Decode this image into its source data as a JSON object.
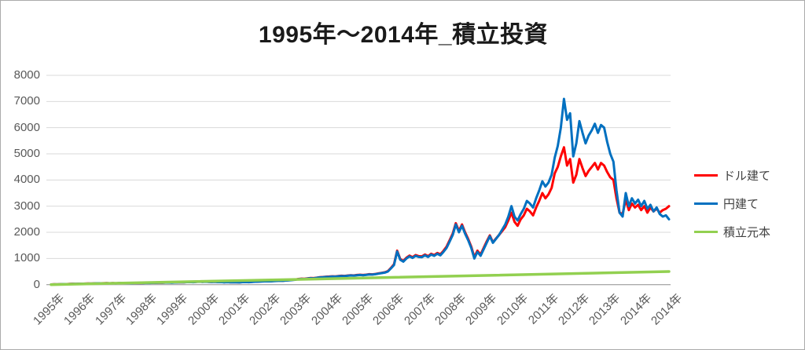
{
  "title": "1995年～2014年_積立投資",
  "chart_data": {
    "type": "line",
    "title": "1995年～2014年_積立投資",
    "xlabel": "",
    "ylabel": "",
    "ylim": [
      0,
      8000
    ],
    "y_tick_step": 1000,
    "y_tick_labels": [
      "8000",
      "7000",
      "6000",
      "5000",
      "4000",
      "3000",
      "2000",
      "1000",
      "0"
    ],
    "x_tick_labels": [
      "1995年",
      "1996年",
      "1997年",
      "1998年",
      "1999年",
      "2000年",
      "2001年",
      "2002年",
      "2003年",
      "2004年",
      "2005年",
      "2006年",
      "2007年",
      "2008年",
      "2009年",
      "2010年",
      "2011年",
      "2012年",
      "2013年",
      "2014年",
      "2014年"
    ],
    "grid": "horizontal",
    "legend_position": "right",
    "x_unit": "tick-index (one tick per year label)",
    "series": [
      {
        "name": "ドル建て",
        "color": "#FF0000",
        "x_start": 0,
        "x_step": 0.1,
        "values": [
          5,
          12,
          10,
          18,
          22,
          20,
          28,
          32,
          30,
          35,
          32,
          38,
          42,
          40,
          48,
          52,
          50,
          55,
          58,
          52,
          58,
          52,
          60,
          62,
          56,
          60,
          55,
          60,
          64,
          60,
          62,
          68,
          65,
          74,
          72,
          78,
          75,
          82,
          84,
          80,
          84,
          88,
          94,
          90,
          98,
          104,
          96,
          108,
          114,
          108,
          114,
          108,
          104,
          112,
          98,
          104,
          94,
          98,
          92,
          96,
          94,
          88,
          98,
          104,
          96,
          108,
          114,
          120,
          125,
          130,
          135,
          130,
          140,
          146,
          155,
          150,
          160,
          170,
          182,
          192,
          215,
          228,
          222,
          238,
          252,
          248,
          268,
          282,
          292,
          302,
          308,
          318,
          312,
          328,
          338,
          332,
          348,
          358,
          352,
          368,
          378,
          368,
          382,
          398,
          392,
          408,
          428,
          450,
          470,
          515,
          640,
          780,
          1300,
          980,
          910,
          1030,
          1110,
          1050,
          1130,
          1090,
          1080,
          1150,
          1090,
          1180,
          1130,
          1210,
          1160,
          1290,
          1450,
          1700,
          1950,
          2350,
          2050,
          2300,
          2000,
          1750,
          1450,
          1050,
          1300,
          1150,
          1400,
          1650,
          1880,
          1620,
          1760,
          1900,
          2050,
          2200,
          2450,
          2750,
          2400,
          2250,
          2500,
          2650,
          2900,
          2800,
          2650,
          2950,
          3200,
          3500,
          3300,
          3450,
          3700,
          4250,
          4500,
          4900,
          5250,
          4550,
          4800,
          3900,
          4200,
          4800,
          4450,
          4150,
          4350,
          4500,
          4650,
          4400,
          4650,
          4550,
          4300,
          4100,
          4000,
          3300,
          2750,
          2700,
          3250,
          2850,
          3100,
          2950,
          3050,
          2850,
          3000,
          2750,
          2950,
          2800,
          2900,
          2750,
          2850,
          2900,
          3000
        ]
      },
      {
        "name": "円建て",
        "color": "#0070C0",
        "x_start": 0,
        "x_step": 0.1,
        "values": [
          5,
          10,
          8,
          15,
          20,
          18,
          25,
          30,
          28,
          32,
          30,
          35,
          40,
          38,
          45,
          50,
          48,
          52,
          55,
          50,
          55,
          48,
          56,
          60,
          54,
          58,
          52,
          57,
          61,
          58,
          60,
          65,
          62,
          70,
          68,
          75,
          72,
          78,
          80,
          76,
          80,
          85,
          90,
          86,
          95,
          100,
          92,
          105,
          110,
          105,
          110,
          105,
          100,
          108,
          95,
          100,
          90,
          95,
          88,
          92,
          90,
          85,
          95,
          100,
          92,
          105,
          110,
          115,
          120,
          125,
          130,
          125,
          135,
          140,
          150,
          145,
          155,
          165,
          175,
          185,
          210,
          220,
          215,
          230,
          245,
          240,
          260,
          275,
          285,
          295,
          300,
          310,
          305,
          320,
          330,
          325,
          340,
          350,
          345,
          360,
          370,
          360,
          375,
          390,
          385,
          400,
          420,
          440,
          460,
          500,
          620,
          750,
          1270,
          950,
          880,
          1000,
          1080,
          1020,
          1100,
          1060,
          1050,
          1120,
          1060,
          1150,
          1100,
          1180,
          1120,
          1250,
          1400,
          1650,
          1900,
          2300,
          2000,
          2250,
          1950,
          1700,
          1400,
          1000,
          1250,
          1100,
          1350,
          1600,
          1850,
          1600,
          1750,
          1900,
          2100,
          2300,
          2600,
          3000,
          2600,
          2450,
          2700,
          2900,
          3200,
          3100,
          2950,
          3300,
          3600,
          3950,
          3750,
          3900,
          4200,
          4850,
          5300,
          6000,
          7100,
          6300,
          6550,
          4900,
          5400,
          6250,
          5800,
          5400,
          5700,
          5900,
          6150,
          5800,
          6100,
          6000,
          5450,
          5000,
          4700,
          3600,
          2750,
          2600,
          3500,
          3000,
          3300,
          3100,
          3250,
          3000,
          3200,
          2900,
          3050,
          2800,
          2950,
          2700,
          2600,
          2650,
          2500
        ]
      },
      {
        "name": "積立元本",
        "color": "#92D050",
        "x": [
          0,
          20
        ],
        "values": [
          0,
          500
        ]
      }
    ]
  },
  "colors": {
    "red_series": "#FF0000",
    "blue_series": "#0070C0",
    "green_series": "#92D050",
    "gridline": "#D9D9D9",
    "axis_line": "#ABABAB",
    "tick_text": "#595959",
    "legend_text": "#404040",
    "title_text": "#1A1A1A",
    "frame_border": "#ABABAB"
  }
}
